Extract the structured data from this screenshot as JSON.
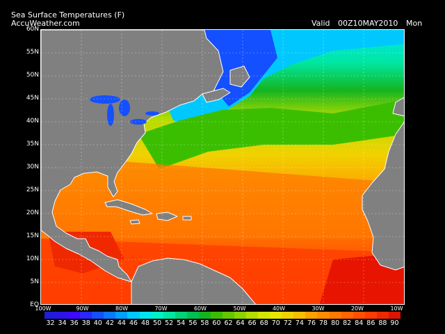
{
  "header": {
    "title": "Sea Surface Temperatures (F)",
    "source": "AccuWeather.com",
    "valid_label": "Valid",
    "valid_time": "00Z10MAY2010",
    "day": "Mon"
  },
  "map": {
    "lat_labels": [
      "60N",
      "55N",
      "50N",
      "45N",
      "40N",
      "35N",
      "30N",
      "25N",
      "20N",
      "15N",
      "10N",
      "5N",
      "EQ"
    ],
    "lon_labels": [
      "100W",
      "90W",
      "80W",
      "70W",
      "60W",
      "50W",
      "40W",
      "30W",
      "20W",
      "10W"
    ],
    "land_color": "#808080",
    "coast_color": "#ffffff"
  },
  "legend": {
    "labels": [
      "32",
      "34",
      "36",
      "38",
      "40",
      "42",
      "44",
      "46",
      "48",
      "50",
      "52",
      "54",
      "56",
      "58",
      "60",
      "62",
      "64",
      "66",
      "68",
      "70",
      "72",
      "74",
      "76",
      "78",
      "80",
      "82",
      "84",
      "86",
      "88",
      "90"
    ],
    "colors": [
      "#1e1ed8",
      "#2a14e6",
      "#3c0aff",
      "#2828ff",
      "#1450ff",
      "#0a78ff",
      "#00a0ff",
      "#00c8ff",
      "#00e6f0",
      "#00f0c8",
      "#00e6a0",
      "#00d278",
      "#00be50",
      "#14b41e",
      "#3cbe00",
      "#64c800",
      "#8cd200",
      "#b4dc00",
      "#d2e600",
      "#e6e600",
      "#f0d200",
      "#f5be00",
      "#faa000",
      "#ff8c00",
      "#ff7800",
      "#ff6400",
      "#ff5000",
      "#ff3c00",
      "#f02800",
      "#dc1400"
    ]
  }
}
